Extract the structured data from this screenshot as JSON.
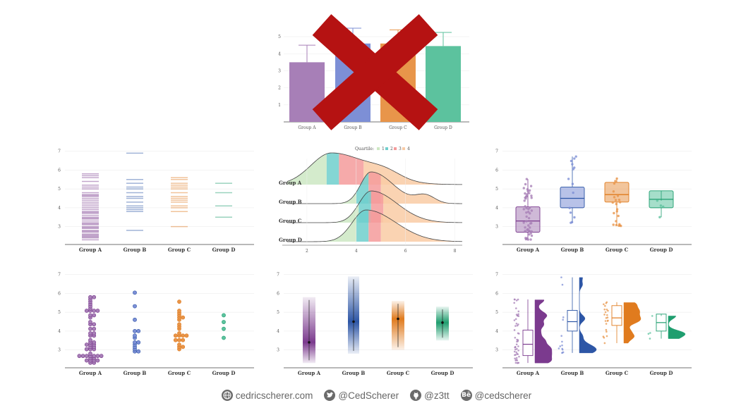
{
  "colors": {
    "A": "#a77fb7",
    "B": "#7d8fd6",
    "C": "#e8954a",
    "D": "#5cc29e",
    "cross": "#b51212",
    "darkA": "#7b3a8e",
    "darkB": "#2d56a6",
    "darkC": "#e07b1e",
    "darkD": "#1f9e6f",
    "q1": "#cde8c3",
    "q2": "#6fcfcd",
    "q3": "#f49b9b",
    "q4": "#f9cba5"
  },
  "chart_data": [
    {
      "id": "bar",
      "type": "bar",
      "title": "",
      "categories": [
        "Group A",
        "Group B",
        "Group C",
        "Group D"
      ],
      "values": [
        3.5,
        4.6,
        4.6,
        4.45
      ],
      "errors": [
        1.0,
        0.9,
        0.8,
        0.8
      ],
      "ylim": [
        0,
        5.5
      ],
      "yticks": [
        "1",
        "2",
        "3",
        "4",
        "5"
      ],
      "overlay": "crossed-out"
    },
    {
      "id": "barcode",
      "type": "scatter",
      "title": "",
      "categories": [
        "Group A",
        "Group B",
        "Group C",
        "Group D"
      ],
      "ylim": [
        2.2,
        7.1
      ],
      "yticks": [
        "3",
        "4",
        "5",
        "6",
        "7"
      ],
      "series": [
        {
          "name": "Group A",
          "values": [
            2.3,
            2.4,
            2.45,
            2.5,
            2.55,
            2.6,
            2.7,
            2.75,
            2.8,
            2.9,
            2.95,
            3.0,
            3.1,
            3.15,
            3.2,
            3.3,
            3.4,
            3.45,
            3.5,
            3.6,
            3.7,
            3.75,
            3.8,
            3.9,
            4.0,
            4.1,
            4.2,
            4.3,
            4.4,
            4.5,
            4.6,
            4.65,
            4.7,
            4.8,
            5.0,
            5.1,
            5.2,
            5.4,
            5.6,
            5.7,
            5.8
          ]
        },
        {
          "name": "Group B",
          "values": [
            2.8,
            3.8,
            3.9,
            4.0,
            4.1,
            4.3,
            4.5,
            4.6,
            4.8,
            5.0,
            5.1,
            5.3,
            5.5,
            6.9
          ]
        },
        {
          "name": "Group C",
          "values": [
            3.0,
            3.8,
            4.0,
            4.1,
            4.3,
            4.4,
            4.5,
            4.6,
            4.8,
            5.0,
            5.1,
            5.2,
            5.3,
            5.5,
            5.6
          ]
        },
        {
          "name": "Group D",
          "values": [
            3.5,
            4.1,
            4.8,
            5.3
          ]
        }
      ]
    },
    {
      "id": "ridge",
      "type": "area",
      "title": "",
      "legend_title": "Quartile",
      "legend": [
        "1",
        "2",
        "3",
        "4"
      ],
      "categories": [
        "Group A",
        "Group B",
        "Group C",
        "Group D"
      ],
      "xlim": [
        1,
        8.3
      ],
      "xticks": [
        2,
        4,
        6,
        8
      ],
      "quartiles": [
        [
          2.8,
          3.3,
          4.3
        ],
        [
          4.0,
          4.5,
          5.0
        ],
        [
          4.1,
          4.6,
          5.1
        ],
        [
          4.0,
          4.5,
          5.0
        ]
      ],
      "modes": [
        [
          3.0,
          1.2,
          0.6
        ],
        [
          4.6,
          0.6,
          1.0
        ],
        [
          4.6,
          0.7,
          1.0
        ],
        [
          4.4,
          0.8,
          1.0
        ]
      ]
    },
    {
      "id": "boxjitter",
      "type": "scatter",
      "title": "",
      "categories": [
        "Group A",
        "Group B",
        "Group C",
        "Group D"
      ],
      "ylim": [
        2.2,
        7.1
      ],
      "yticks": [
        "3",
        "4",
        "5",
        "6",
        "7"
      ],
      "boxes": [
        [
          2.7,
          3.3,
          4.05
        ],
        [
          4.0,
          4.5,
          5.1
        ],
        [
          4.3,
          4.7,
          5.35
        ],
        [
          4.0,
          4.45,
          4.9
        ]
      ]
    },
    {
      "id": "beeswarm",
      "type": "scatter",
      "title": "",
      "categories": [
        "Group A",
        "Group B",
        "Group C",
        "Group D"
      ],
      "ylim": [
        2.2,
        7.1
      ],
      "yticks": [
        "3",
        "4",
        "5",
        "6",
        "7"
      ]
    },
    {
      "id": "gradient",
      "type": "bar",
      "title": "",
      "categories": [
        "Group A",
        "Group B",
        "Group C",
        "Group D"
      ],
      "ylim": [
        2.2,
        7.1
      ],
      "yticks": [
        "3",
        "4",
        "5",
        "6",
        "7"
      ],
      "ranges": [
        [
          2.3,
          5.8
        ],
        [
          2.8,
          6.9
        ],
        [
          3.0,
          5.6
        ],
        [
          3.5,
          5.3
        ]
      ],
      "medians": [
        3.4,
        4.5,
        4.65,
        4.45
      ]
    },
    {
      "id": "raincloud",
      "type": "scatter",
      "title": "",
      "categories": [
        "Group A",
        "Group B",
        "Group C",
        "Group D"
      ],
      "ylim": [
        2.2,
        7.1
      ],
      "yticks": [
        "3",
        "4",
        "5",
        "6",
        "7"
      ],
      "boxes": [
        [
          2.7,
          3.3,
          4.05
        ],
        [
          4.0,
          4.5,
          5.1
        ],
        [
          4.3,
          4.7,
          5.35
        ],
        [
          4.0,
          4.45,
          4.9
        ]
      ]
    }
  ],
  "footer": {
    "website": "cedricscherer.com",
    "twitter": "@CedScherer",
    "github": "@z3tt",
    "behance": "@cedscherer",
    "behance_glyph": "Bē"
  }
}
